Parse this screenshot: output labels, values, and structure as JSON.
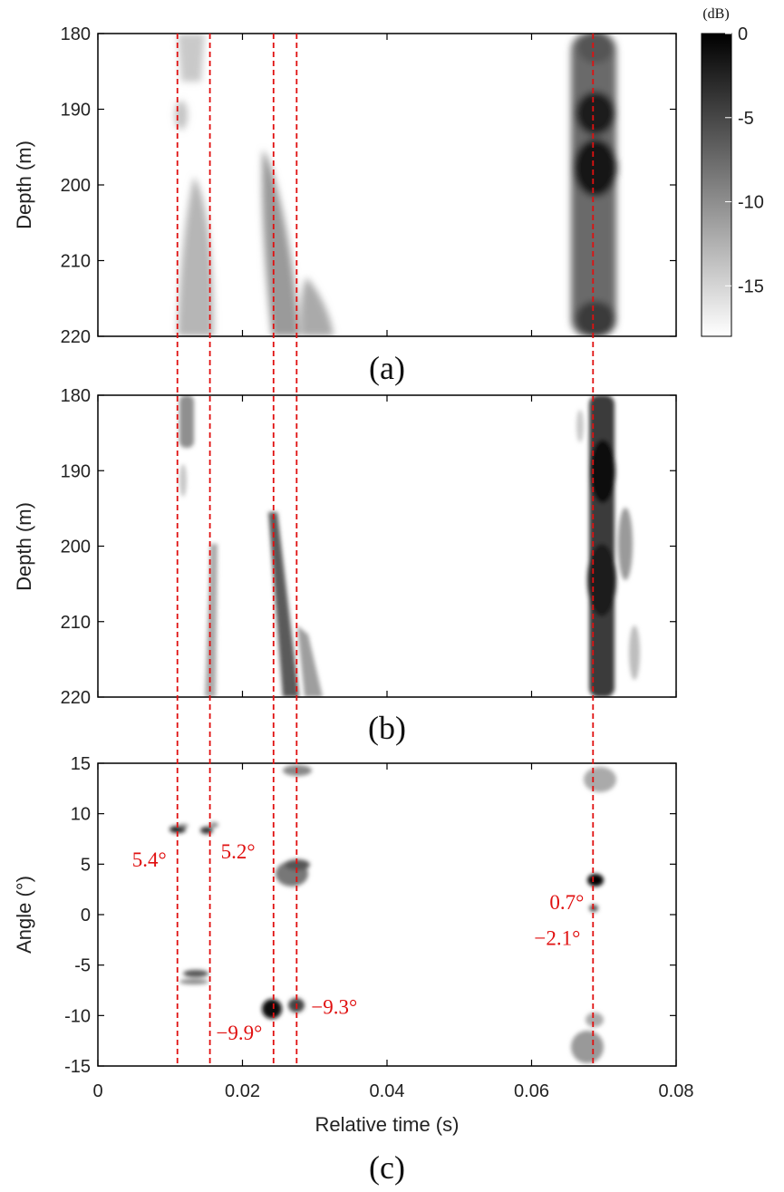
{
  "chart_data": [
    {
      "panel": "(a)",
      "type": "heatmap",
      "xlim": [
        0,
        0.08
      ],
      "ylim": [
        220,
        180
      ],
      "ylabel": "Depth (m)",
      "yticks": [
        180,
        190,
        200,
        210,
        220
      ],
      "colormap": "white-to-black",
      "color_range_db": [
        -18,
        0
      ],
      "features": [
        {
          "t_start": 0.0115,
          "t_end": 0.0125,
          "depth_top": 180,
          "depth_bottom": 220,
          "peak_db": -11
        },
        {
          "t_start": 0.024,
          "t_end": 0.0275,
          "depth_top": 196,
          "depth_bottom": 220,
          "peak_db": -7
        },
        {
          "t_start": 0.027,
          "t_end": 0.03,
          "depth_top": 213,
          "depth_bottom": 220,
          "peak_db": -12
        },
        {
          "t_start": 0.067,
          "t_end": 0.0705,
          "depth_top": 180,
          "depth_bottom": 220,
          "peak_db": -1
        }
      ]
    },
    {
      "panel": "(b)",
      "type": "heatmap",
      "xlim": [
        0,
        0.08
      ],
      "ylim": [
        220,
        180
      ],
      "ylabel": "Depth (m)",
      "yticks": [
        180,
        190,
        200,
        210,
        220
      ],
      "features": [
        {
          "t_start": 0.012,
          "t_end": 0.0135,
          "depth_top": 180,
          "depth_bottom": 186,
          "peak_db": -8
        },
        {
          "t_start": 0.0155,
          "t_end": 0.0165,
          "depth_top": 200,
          "depth_bottom": 220,
          "peak_db": -10
        },
        {
          "t_start": 0.0245,
          "t_end": 0.0305,
          "depth_top": 196,
          "depth_bottom": 221,
          "peak_db": -5
        },
        {
          "t_start": 0.068,
          "t_end": 0.0715,
          "depth_top": 180,
          "depth_bottom": 220,
          "peak_db": -2
        }
      ]
    },
    {
      "panel": "(c)",
      "type": "heatmap",
      "xlim": [
        0,
        0.08
      ],
      "ylim": [
        -15,
        15
      ],
      "xlabel": "Relative time (s)",
      "ylabel": "Angle (°)",
      "xticks": [
        "0",
        "0.02",
        "0.04",
        "0.06",
        "0.08"
      ],
      "yticks": [
        15,
        10,
        5,
        0,
        -5,
        -10,
        -15
      ],
      "peaks": [
        {
          "t": 0.011,
          "angle": 5.4,
          "label": "5.4°"
        },
        {
          "t": 0.0155,
          "angle": 5.2,
          "label": "5.2°"
        },
        {
          "t": 0.0245,
          "angle": -9.9,
          "label": "−9.9°"
        },
        {
          "t": 0.0275,
          "angle": -9.3,
          "label": "−9.3°"
        },
        {
          "t": 0.0685,
          "angle": 0.7,
          "label": "0.7°"
        },
        {
          "t": 0.0685,
          "angle": -2.1,
          "label": "−2.1°"
        }
      ]
    }
  ],
  "colorbar": {
    "unit": "(dB)",
    "ticks": [
      "0",
      "-5",
      "-10",
      "-15"
    ],
    "tick_values": [
      0,
      -5,
      -10,
      -15
    ],
    "range": [
      -18,
      0
    ]
  },
  "reference_lines_t": [
    0.011,
    0.0155,
    0.0243,
    0.0275,
    0.0685
  ],
  "reference_line_color": "#e01010",
  "captions": [
    "(a)",
    "(b)",
    "(c)"
  ]
}
